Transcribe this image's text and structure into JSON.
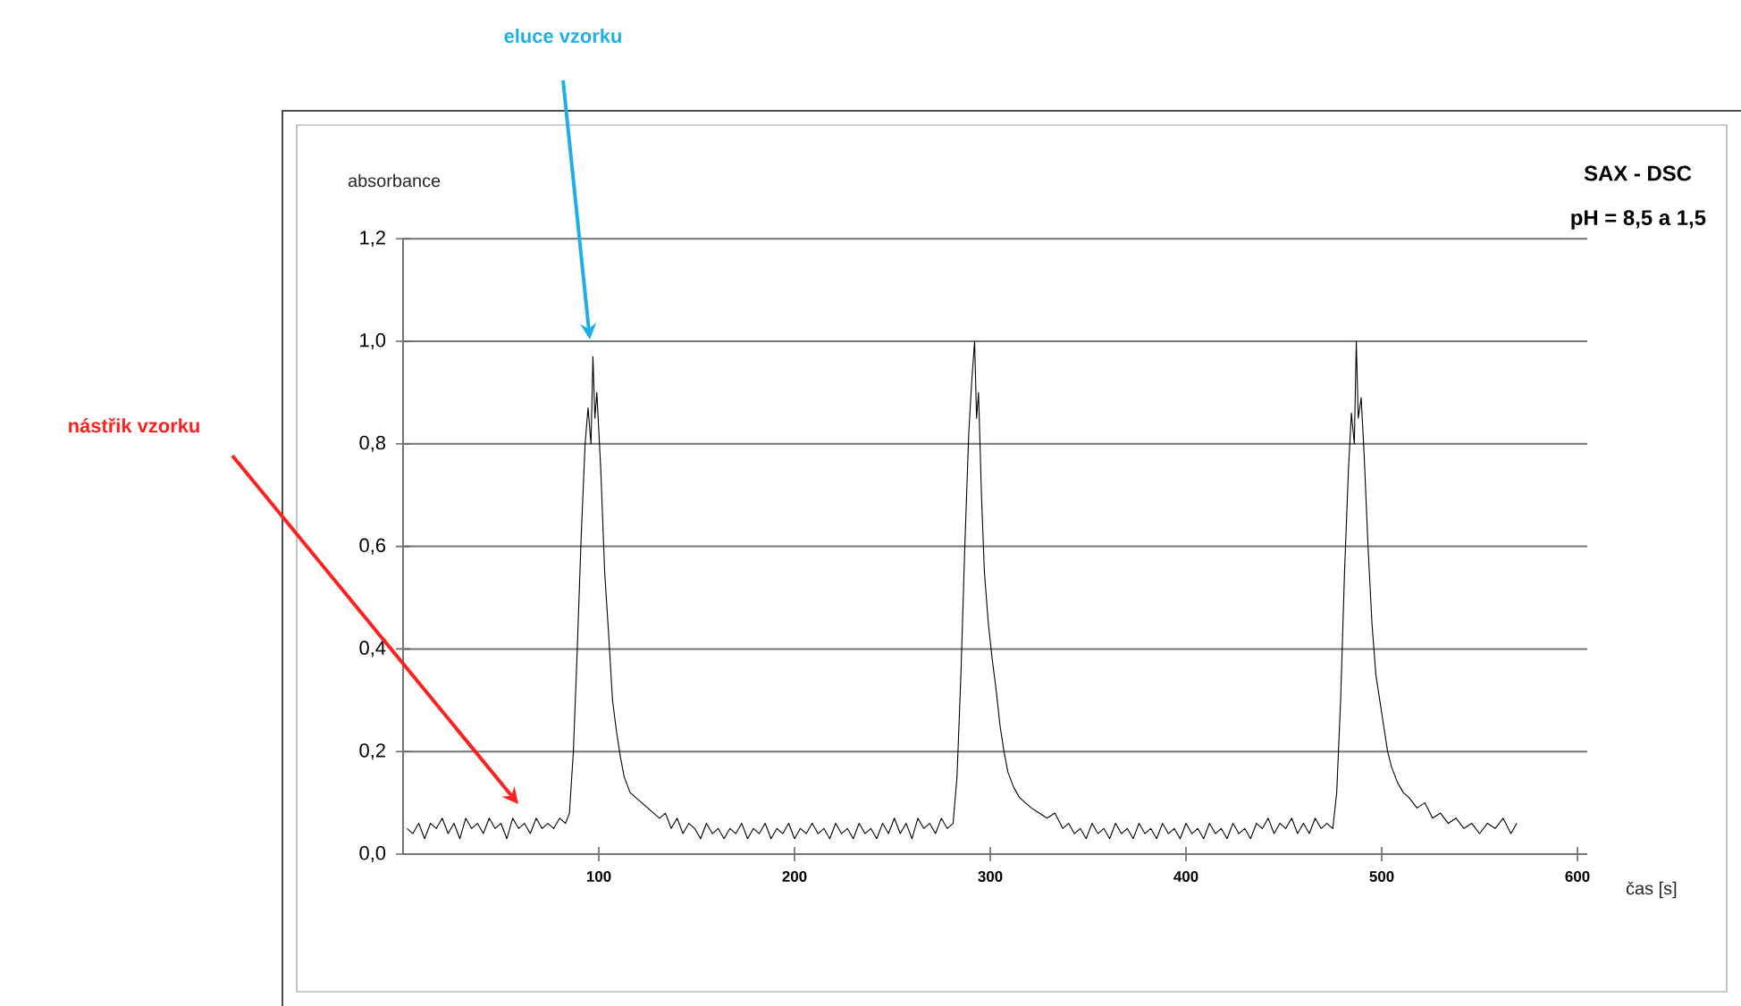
{
  "chart_data": {
    "type": "line",
    "title": "SAX - DSC",
    "subtitle": "pH = 8,5 a 1,5",
    "xlabel": "čas [s]",
    "ylabel": "absorbance",
    "xlim": [
      0,
      605
    ],
    "ylim": [
      0,
      1.2
    ],
    "xticks": [
      100,
      200,
      300,
      400,
      500,
      600
    ],
    "yticks": [
      {
        "value": 0,
        "label": "0,0"
      },
      {
        "value": 0.2,
        "label": "0,2"
      },
      {
        "value": 0.4,
        "label": "0,4"
      },
      {
        "value": 0.6,
        "label": "0,6"
      },
      {
        "value": 0.8,
        "label": "0,8"
      },
      {
        "value": 1.0,
        "label": "1,0"
      },
      {
        "value": 1.2,
        "label": "1,2"
      }
    ],
    "grid": "y",
    "annotations": [
      "eluce vzorku",
      "nástřik vzorku"
    ],
    "series": [
      {
        "color": "#000000",
        "x": [
          2,
          5,
          8,
          11,
          14,
          17,
          20,
          23,
          26,
          29,
          32,
          35,
          38,
          41,
          44,
          47,
          50,
          53,
          56,
          59,
          62,
          65,
          68,
          71,
          74,
          77,
          80,
          83,
          85,
          87,
          89,
          91,
          93,
          94.5,
          96,
          97,
          98,
          99,
          101,
          103,
          105,
          107,
          109,
          111,
          113,
          116,
          119,
          122,
          125,
          128,
          131,
          134,
          137,
          140,
          143,
          146,
          149,
          152,
          155,
          158,
          161,
          164,
          167,
          170,
          173,
          176,
          179,
          182,
          185,
          188,
          191,
          194,
          197,
          200,
          203,
          206,
          209,
          212,
          215,
          218,
          221,
          224,
          227,
          230,
          233,
          236,
          239,
          242,
          245,
          248,
          251,
          254,
          257,
          260,
          263,
          266,
          269,
          272,
          275,
          278,
          281,
          283,
          285,
          287,
          289,
          290.5,
          292,
          293,
          294,
          295.5,
          297,
          299,
          301,
          303,
          305,
          307,
          309,
          312,
          315,
          318,
          321,
          325,
          329,
          333,
          337,
          340,
          343,
          346,
          349,
          352,
          355,
          358,
          361,
          364,
          367,
          370,
          373,
          376,
          379,
          382,
          385,
          388,
          391,
          394,
          397,
          400,
          403,
          406,
          409,
          412,
          415,
          418,
          421,
          424,
          427,
          430,
          433,
          436,
          439,
          442,
          445,
          448,
          451,
          454,
          457,
          460,
          463,
          466,
          469,
          472,
          475,
          477,
          479,
          481,
          483,
          484.5,
          486,
          487,
          488,
          489.5,
          491,
          493,
          495,
          497,
          499,
          501,
          503,
          505,
          508,
          511,
          514,
          518,
          522,
          526,
          530,
          534,
          538,
          542,
          546,
          550,
          554,
          558,
          562,
          566,
          569
        ],
        "values": [
          0.05,
          0.04,
          0.06,
          0.03,
          0.06,
          0.05,
          0.07,
          0.04,
          0.06,
          0.03,
          0.07,
          0.05,
          0.06,
          0.04,
          0.07,
          0.05,
          0.06,
          0.03,
          0.07,
          0.05,
          0.06,
          0.04,
          0.07,
          0.05,
          0.06,
          0.05,
          0.07,
          0.06,
          0.08,
          0.2,
          0.4,
          0.62,
          0.8,
          0.87,
          0.8,
          0.97,
          0.85,
          0.9,
          0.75,
          0.55,
          0.43,
          0.3,
          0.24,
          0.19,
          0.15,
          0.12,
          0.11,
          0.1,
          0.09,
          0.08,
          0.07,
          0.08,
          0.05,
          0.07,
          0.04,
          0.06,
          0.05,
          0.03,
          0.06,
          0.04,
          0.05,
          0.03,
          0.05,
          0.04,
          0.06,
          0.03,
          0.05,
          0.04,
          0.06,
          0.03,
          0.05,
          0.04,
          0.06,
          0.03,
          0.05,
          0.04,
          0.06,
          0.04,
          0.05,
          0.03,
          0.06,
          0.04,
          0.05,
          0.03,
          0.06,
          0.04,
          0.05,
          0.03,
          0.06,
          0.04,
          0.07,
          0.04,
          0.06,
          0.03,
          0.07,
          0.05,
          0.06,
          0.04,
          0.07,
          0.05,
          0.06,
          0.15,
          0.35,
          0.6,
          0.82,
          0.92,
          1.0,
          0.85,
          0.9,
          0.7,
          0.55,
          0.45,
          0.38,
          0.32,
          0.25,
          0.2,
          0.16,
          0.13,
          0.11,
          0.1,
          0.09,
          0.08,
          0.07,
          0.08,
          0.05,
          0.06,
          0.04,
          0.05,
          0.03,
          0.06,
          0.04,
          0.05,
          0.03,
          0.06,
          0.04,
          0.05,
          0.03,
          0.06,
          0.04,
          0.05,
          0.03,
          0.06,
          0.04,
          0.05,
          0.03,
          0.06,
          0.04,
          0.05,
          0.03,
          0.06,
          0.04,
          0.05,
          0.03,
          0.06,
          0.04,
          0.05,
          0.03,
          0.06,
          0.05,
          0.07,
          0.04,
          0.06,
          0.05,
          0.07,
          0.04,
          0.06,
          0.04,
          0.07,
          0.05,
          0.06,
          0.05,
          0.12,
          0.3,
          0.55,
          0.75,
          0.86,
          0.8,
          1.0,
          0.85,
          0.89,
          0.78,
          0.6,
          0.45,
          0.35,
          0.3,
          0.25,
          0.2,
          0.17,
          0.14,
          0.12,
          0.11,
          0.09,
          0.1,
          0.07,
          0.08,
          0.06,
          0.07,
          0.05,
          0.06,
          0.04,
          0.06,
          0.05,
          0.07,
          0.04,
          0.06
        ]
      }
    ]
  }
}
